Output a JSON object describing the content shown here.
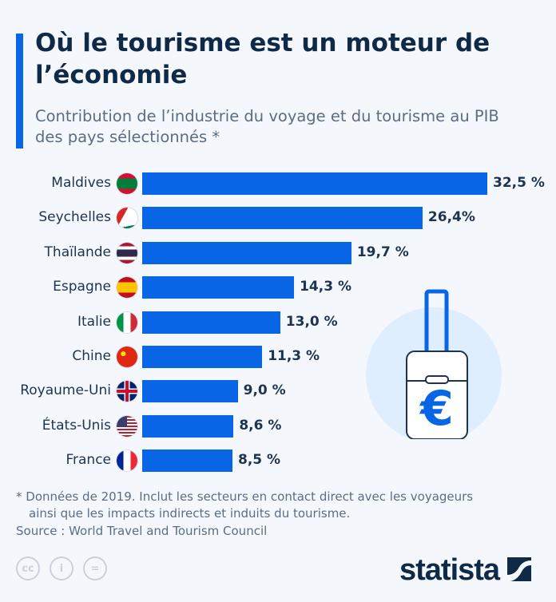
{
  "header": {
    "title": "Où le tourisme est un moteur de l’économie",
    "subtitle": "Contribution de l’industrie du voyage et du tourisme au PIB des pays sélectionnés *"
  },
  "colors": {
    "bar": "#0866e6",
    "title": "#0f2a47",
    "text": "#1d3350",
    "muted": "#5b6d82",
    "background": "#f4f8fc"
  },
  "chart_data": {
    "type": "bar",
    "orientation": "horizontal",
    "categories": [
      "Maldives",
      "Seychelles",
      "Thaïlande",
      "Espagne",
      "Italie",
      "Chine",
      "Royaume-Uni",
      "États-Unis",
      "France"
    ],
    "values": [
      32.5,
      26.4,
      19.7,
      14.3,
      13.0,
      11.3,
      9.0,
      8.6,
      8.5
    ],
    "data_labels": [
      "32,5 %",
      "26,4%",
      "19,7 %",
      "14,3 %",
      "13,0 %",
      "11,3 %",
      "9,0 %",
      "8,6 %",
      "8,5 %"
    ],
    "unit": "%",
    "grid": false,
    "flags": [
      "maldives-flag",
      "seychelles-flag",
      "thailand-flag",
      "spain-flag",
      "italy-flag",
      "china-flag",
      "uk-flag",
      "usa-flag",
      "france-flag"
    ]
  },
  "illustration": "suitcase-euro-icon",
  "footer": {
    "note_line1": "* Données de 2019. Inclut les secteurs en contact direct avec les voyageurs",
    "note_line2": "ainsi que les impacts indirects et induits du tourisme.",
    "source": "Source : World Travel and Tourism Council",
    "license_icons": [
      "cc-icon",
      "by-icon",
      "nd-icon"
    ],
    "logo": "statista"
  }
}
